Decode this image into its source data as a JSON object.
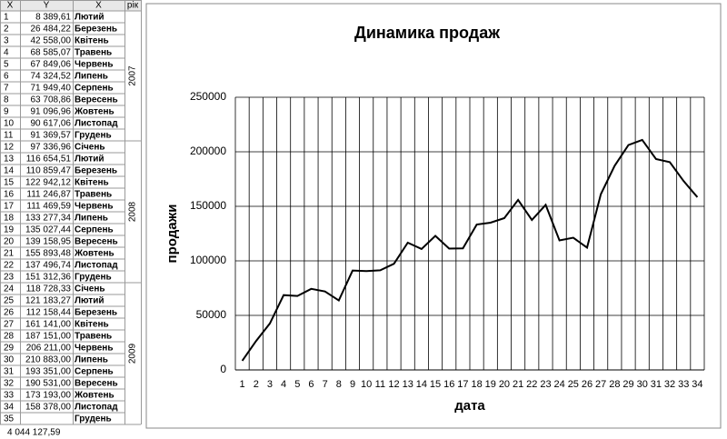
{
  "table": {
    "headers": [
      "X",
      "Y",
      "X",
      "рік"
    ],
    "rows": [
      [
        1,
        "8 389,61",
        "Лютий"
      ],
      [
        2,
        "26 484,22",
        "Березень"
      ],
      [
        3,
        "42 558,00",
        "Квітень"
      ],
      [
        4,
        "68 585,07",
        "Травень"
      ],
      [
        5,
        "67 849,06",
        "Червень"
      ],
      [
        6,
        "74 324,52",
        "Липень"
      ],
      [
        7,
        "71 949,40",
        "Серпень"
      ],
      [
        8,
        "63 708,86",
        "Вересень"
      ],
      [
        9,
        "91 096,96",
        "Жовтень"
      ],
      [
        10,
        "90 617,06",
        "Листопад"
      ],
      [
        11,
        "91 369,57",
        "Грудень"
      ],
      [
        12,
        "97 336,96",
        "Січень"
      ],
      [
        13,
        "116 654,51",
        "Лютий"
      ],
      [
        14,
        "110 859,47",
        "Березень"
      ],
      [
        15,
        "122 942,12",
        "Квітень"
      ],
      [
        16,
        "111 246,87",
        "Травень"
      ],
      [
        17,
        "111 469,59",
        "Червень"
      ],
      [
        18,
        "133 277,34",
        "Липень"
      ],
      [
        19,
        "135 027,44",
        "Серпень"
      ],
      [
        20,
        "139 158,95",
        "Вересень"
      ],
      [
        21,
        "155 893,48",
        "Жовтень"
      ],
      [
        22,
        "137 496,74",
        "Листопад"
      ],
      [
        23,
        "151 312,36",
        "Грудень"
      ],
      [
        24,
        "118 728,33",
        "Січень"
      ],
      [
        25,
        "121 183,27",
        "Лютий"
      ],
      [
        26,
        "112 158,44",
        "Березень"
      ],
      [
        27,
        "161 141,00",
        "Квітень"
      ],
      [
        28,
        "187 151,00",
        "Травень"
      ],
      [
        29,
        "206 211,00",
        "Червень"
      ],
      [
        30,
        "210 883,00",
        "Липень"
      ],
      [
        31,
        "193 351,00",
        "Серпень"
      ],
      [
        32,
        "190 531,00",
        "Вересень"
      ],
      [
        33,
        "173 193,00",
        "Жовтень"
      ],
      [
        34,
        "158 378,00",
        "Листопад"
      ],
      [
        35,
        null,
        "Грудень"
      ]
    ],
    "years": [
      "2007",
      "2008",
      "2009"
    ],
    "total": "4 044 127,59"
  },
  "chart_data": {
    "type": "line",
    "title": "Динамика продаж",
    "x_label": "дата",
    "y_label": "продажи",
    "categories": [
      "1",
      "2",
      "3",
      "4",
      "5",
      "6",
      "7",
      "8",
      "9",
      "10",
      "11",
      "12",
      "13",
      "14",
      "15",
      "16",
      "17",
      "18",
      "19",
      "20",
      "21",
      "22",
      "23",
      "24",
      "25",
      "26",
      "27",
      "28",
      "29",
      "30",
      "31",
      "32",
      "33",
      "34"
    ],
    "values": [
      8389.61,
      26484.22,
      42558,
      68585.07,
      67849.06,
      74324.52,
      71949.4,
      63708.86,
      91096.96,
      90617.06,
      91369.57,
      97336.96,
      116654.51,
      110859.47,
      122942.12,
      111246.87,
      111469.59,
      133277.34,
      135027.44,
      139158.95,
      155893.48,
      137496.74,
      151312.36,
      118728.33,
      121183.27,
      112158.44,
      161141,
      187151,
      206211,
      210883,
      193351,
      190531,
      173193,
      158378
    ],
    "color": "#000000",
    "ylim": [
      0,
      250000
    ],
    "yticks": [
      0,
      50000,
      100000,
      150000,
      200000,
      250000
    ],
    "grid": true
  }
}
